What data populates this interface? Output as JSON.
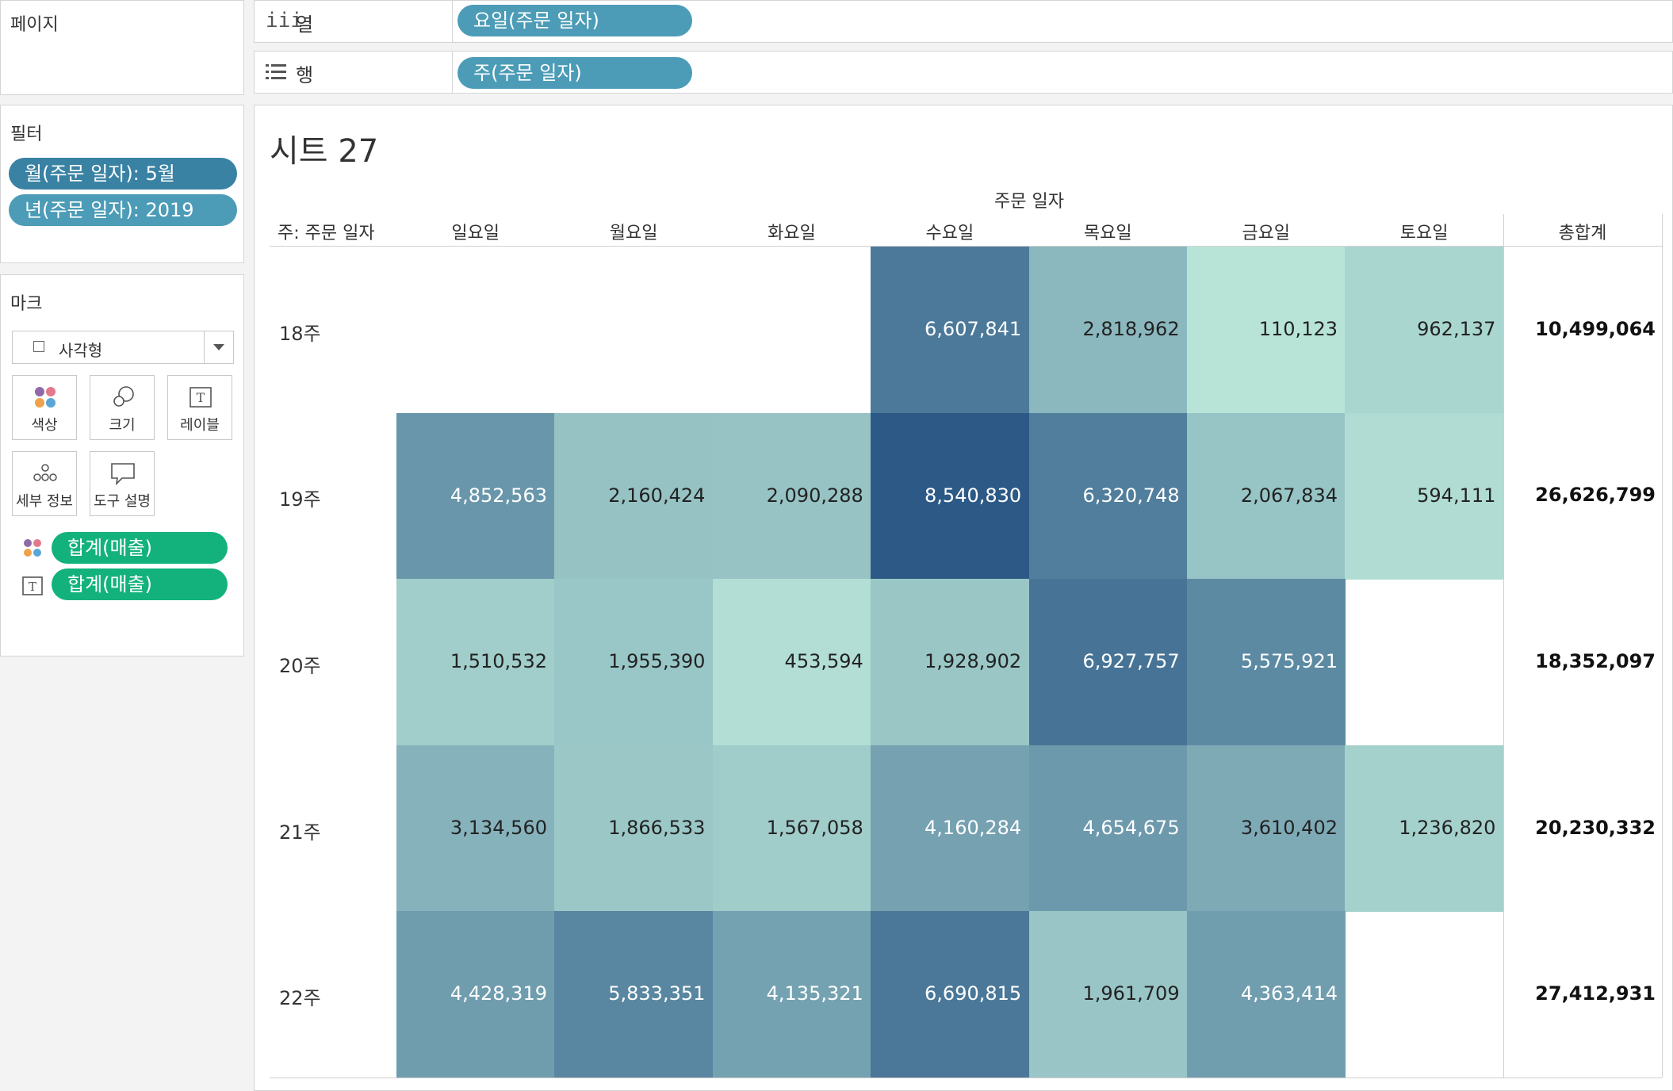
{
  "pages": {
    "title": "페이지"
  },
  "columns_shelf": {
    "label": "열",
    "pill": "요일(주문 일자)"
  },
  "rows_shelf": {
    "label": "행",
    "pill": "주(주문 일자)"
  },
  "filters": {
    "title": "필터",
    "items": [
      "월(주문 일자): 5월",
      "년(주문 일자): 2019"
    ]
  },
  "marks": {
    "title": "마크",
    "mark_type": "사각형",
    "buttons": [
      "색상",
      "크기",
      "레이블",
      "세부 정보",
      "도구 설명"
    ],
    "fields": [
      "합계(매출)",
      "합계(매출)"
    ]
  },
  "colors": {
    "pill_blue": "#4c9cb7",
    "pill_dark": "#3a82a4",
    "pill_green": "#13b27d"
  },
  "sheet": {
    "title": "시트 27",
    "column_group": "주문 일자",
    "row_header": "주: 주문 일자",
    "days": [
      "일요일",
      "월요일",
      "화요일",
      "수요일",
      "목요일",
      "금요일",
      "토요일"
    ],
    "total_header": "총합계"
  },
  "chart_data": {
    "type": "heatmap",
    "x_label": "주문 일자",
    "y_label": "주: 주문 일자",
    "x": [
      "일요일",
      "월요일",
      "화요일",
      "수요일",
      "목요일",
      "금요일",
      "토요일"
    ],
    "y": [
      "18주",
      "19주",
      "20주",
      "21주",
      "22주"
    ],
    "values": [
      [
        null,
        null,
        null,
        6607841,
        2818962,
        110123,
        962137
      ],
      [
        4852563,
        2160424,
        2090288,
        8540830,
        6320748,
        2067834,
        594111
      ],
      [
        1510532,
        1955390,
        453594,
        1928902,
        6927757,
        5575921,
        null
      ],
      [
        3134560,
        1866533,
        1567058,
        4160284,
        4654675,
        3610402,
        1236820
      ],
      [
        4428319,
        5833351,
        4135321,
        6690815,
        1961709,
        4363414,
        null
      ]
    ],
    "labels": [
      [
        "",
        "",
        "",
        "6,607,841",
        "2,818,962",
        "110,123",
        "962,137"
      ],
      [
        "4,852,563",
        "2,160,424",
        "2,090,288",
        "8,540,830",
        "6,320,748",
        "2,067,834",
        "594,111"
      ],
      [
        "1,510,532",
        "1,955,390",
        "453,594",
        "1,928,902",
        "6,927,757",
        "5,575,921",
        ""
      ],
      [
        "3,134,560",
        "1,866,533",
        "1,567,058",
        "4,160,284",
        "4,654,675",
        "3,610,402",
        "1,236,820"
      ],
      [
        "4,428,319",
        "5,833,351",
        "4,135,321",
        "6,690,815",
        "1,961,709",
        "4,363,414",
        ""
      ]
    ],
    "totals": [
      "10,499,064",
      "26,626,799",
      "18,352,097",
      "20,230,332",
      "27,412,931"
    ],
    "color_scale": [
      "#b8e4d8",
      "#2c5986"
    ],
    "value_range": [
      110123,
      8540830
    ]
  }
}
